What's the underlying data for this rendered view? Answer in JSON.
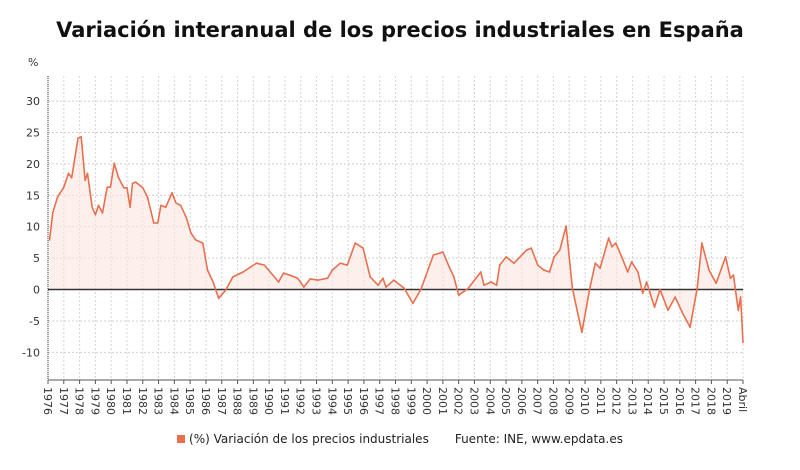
{
  "chart_data": {
    "type": "area",
    "title": "Variación interanual de los precios industriales en España",
    "ylabel": "%",
    "xlabel": "",
    "ylim": [
      -14.4,
      34
    ],
    "yticks": [
      -10,
      -5,
      0,
      5,
      10,
      15,
      20,
      25,
      30
    ],
    "xlim": [
      1976,
      2020
    ],
    "xtick_labels": [
      "1976",
      "1977",
      "1978",
      "1979",
      "1980",
      "1981",
      "1982",
      "1983",
      "1984",
      "1985",
      "1986",
      "1987",
      "1988",
      "1989",
      "1990",
      "1991",
      "1992",
      "1993",
      "1994",
      "1995",
      "1996",
      "1997",
      "1998",
      "1999",
      "2000",
      "2001",
      "2002",
      "2003",
      "2004",
      "2005",
      "2006",
      "2007",
      "2008",
      "2009",
      "2010",
      "2011",
      "2012",
      "2013",
      "2014",
      "2015",
      "2016",
      "2017",
      "2018",
      "2019",
      "Abril"
    ],
    "grid": true,
    "legend_position": "bottom",
    "series": [
      {
        "name": "(%) Variación de los precios industriales",
        "color": "#e8704f",
        "points": [
          [
            1976.1,
            7.9
          ],
          [
            1976.3,
            12.2
          ],
          [
            1976.6,
            14.7
          ],
          [
            1977.0,
            16.3
          ],
          [
            1977.3,
            18.5
          ],
          [
            1977.5,
            17.8
          ],
          [
            1977.9,
            24.1
          ],
          [
            1978.1,
            24.3
          ],
          [
            1978.35,
            17.4
          ],
          [
            1978.5,
            18.5
          ],
          [
            1978.8,
            13.1
          ],
          [
            1979.0,
            11.9
          ],
          [
            1979.2,
            13.4
          ],
          [
            1979.45,
            12.2
          ],
          [
            1979.75,
            16.3
          ],
          [
            1979.95,
            16.3
          ],
          [
            1980.2,
            20.1
          ],
          [
            1980.45,
            17.9
          ],
          [
            1980.8,
            16.2
          ],
          [
            1981.0,
            16.2
          ],
          [
            1981.2,
            13.1
          ],
          [
            1981.35,
            16.9
          ],
          [
            1981.55,
            17.1
          ],
          [
            1982.0,
            16.2
          ],
          [
            1982.3,
            14.7
          ],
          [
            1982.7,
            10.6
          ],
          [
            1982.95,
            10.6
          ],
          [
            1983.15,
            13.4
          ],
          [
            1983.45,
            13.1
          ],
          [
            1983.85,
            15.4
          ],
          [
            1984.1,
            13.8
          ],
          [
            1984.4,
            13.4
          ],
          [
            1984.75,
            11.5
          ],
          [
            1985.05,
            9.0
          ],
          [
            1985.35,
            7.9
          ],
          [
            1985.8,
            7.4
          ],
          [
            1986.1,
            3.1
          ],
          [
            1986.45,
            1.2
          ],
          [
            1986.8,
            -1.4
          ],
          [
            1987.25,
            -0.1
          ],
          [
            1987.7,
            2.0
          ],
          [
            1988.35,
            2.8
          ],
          [
            1989.2,
            4.2
          ],
          [
            1989.7,
            3.9
          ],
          [
            1990.6,
            1.2
          ],
          [
            1990.9,
            2.6
          ],
          [
            1991.3,
            2.3
          ],
          [
            1991.8,
            1.8
          ],
          [
            1992.2,
            0.4
          ],
          [
            1992.6,
            1.7
          ],
          [
            1993.1,
            1.5
          ],
          [
            1993.7,
            1.8
          ],
          [
            1994.0,
            3.1
          ],
          [
            1994.5,
            4.2
          ],
          [
            1994.95,
            3.9
          ],
          [
            1995.45,
            7.4
          ],
          [
            1995.95,
            6.6
          ],
          [
            1996.4,
            2.0
          ],
          [
            1996.9,
            0.7
          ],
          [
            1997.2,
            1.8
          ],
          [
            1997.4,
            0.4
          ],
          [
            1997.9,
            1.5
          ],
          [
            1998.55,
            0.2
          ],
          [
            1999.1,
            -2.2
          ],
          [
            1999.6,
            0.0
          ],
          [
            2000.4,
            5.5
          ],
          [
            2000.8,
            5.8
          ],
          [
            2001.0,
            6.0
          ],
          [
            2001.4,
            3.6
          ],
          [
            2001.7,
            2.0
          ],
          [
            2002.0,
            -0.9
          ],
          [
            2002.6,
            0.2
          ],
          [
            2003.4,
            2.8
          ],
          [
            2003.6,
            0.7
          ],
          [
            2004.05,
            1.2
          ],
          [
            2004.4,
            0.7
          ],
          [
            2004.6,
            3.9
          ],
          [
            2005.0,
            5.2
          ],
          [
            2005.5,
            4.2
          ],
          [
            2006.3,
            6.3
          ],
          [
            2006.6,
            6.6
          ],
          [
            2007.0,
            3.9
          ],
          [
            2007.4,
            3.1
          ],
          [
            2007.75,
            2.8
          ],
          [
            2008.05,
            5.2
          ],
          [
            2008.4,
            6.3
          ],
          [
            2008.8,
            10.1
          ],
          [
            2009.2,
            0.2
          ],
          [
            2009.5,
            -3.3
          ],
          [
            2009.8,
            -6.8
          ],
          [
            2010.3,
            0.2
          ],
          [
            2010.65,
            4.2
          ],
          [
            2010.95,
            3.4
          ],
          [
            2011.5,
            8.2
          ],
          [
            2011.7,
            6.8
          ],
          [
            2011.95,
            7.4
          ],
          [
            2012.35,
            5.0
          ],
          [
            2012.7,
            2.8
          ],
          [
            2012.95,
            4.4
          ],
          [
            2013.35,
            2.8
          ],
          [
            2013.65,
            -0.6
          ],
          [
            2013.9,
            1.2
          ],
          [
            2014.4,
            -2.8
          ],
          [
            2014.75,
            0.0
          ],
          [
            2015.25,
            -3.3
          ],
          [
            2015.7,
            -1.2
          ],
          [
            2016.15,
            -3.6
          ],
          [
            2016.65,
            -6.0
          ],
          [
            2017.1,
            0.2
          ],
          [
            2017.4,
            7.4
          ],
          [
            2017.85,
            3.1
          ],
          [
            2018.3,
            1.0
          ],
          [
            2018.9,
            5.2
          ],
          [
            2019.2,
            1.8
          ],
          [
            2019.4,
            2.3
          ],
          [
            2019.55,
            -0.6
          ],
          [
            2019.7,
            -3.3
          ],
          [
            2019.85,
            -1.2
          ],
          [
            2020.0,
            -8.4
          ]
        ]
      }
    ],
    "source": "Fuente: INE, www.epdata.es"
  }
}
